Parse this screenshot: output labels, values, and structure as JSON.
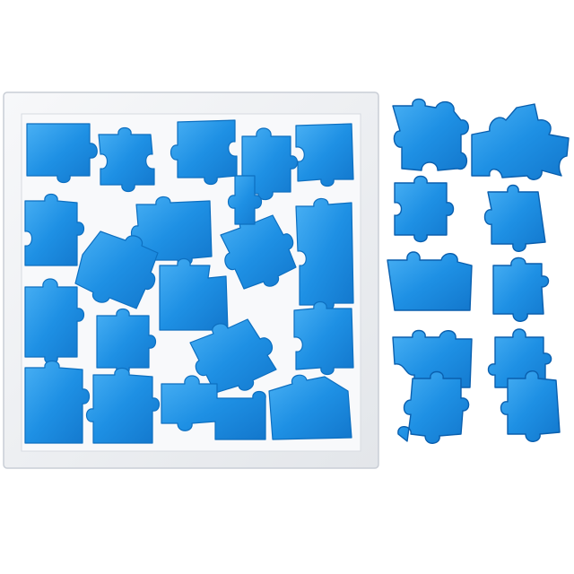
{
  "colors": {
    "background": "#ffffff",
    "frame": "#eef0f3",
    "frame_edge": "#c9ced6",
    "tray_floor": "#f6f7f9",
    "piece_light": "#3ea7f0",
    "piece_mid": "#1f8fe3",
    "piece_dark": "#0d6fc0",
    "piece_shadow": "#0a4f91"
  },
  "icons": {
    "frame": "square-tray-frame",
    "piece": "jigsaw-piece"
  },
  "puzzle": {
    "pieces_in_tray": 21,
    "loose_pieces": 10
  }
}
